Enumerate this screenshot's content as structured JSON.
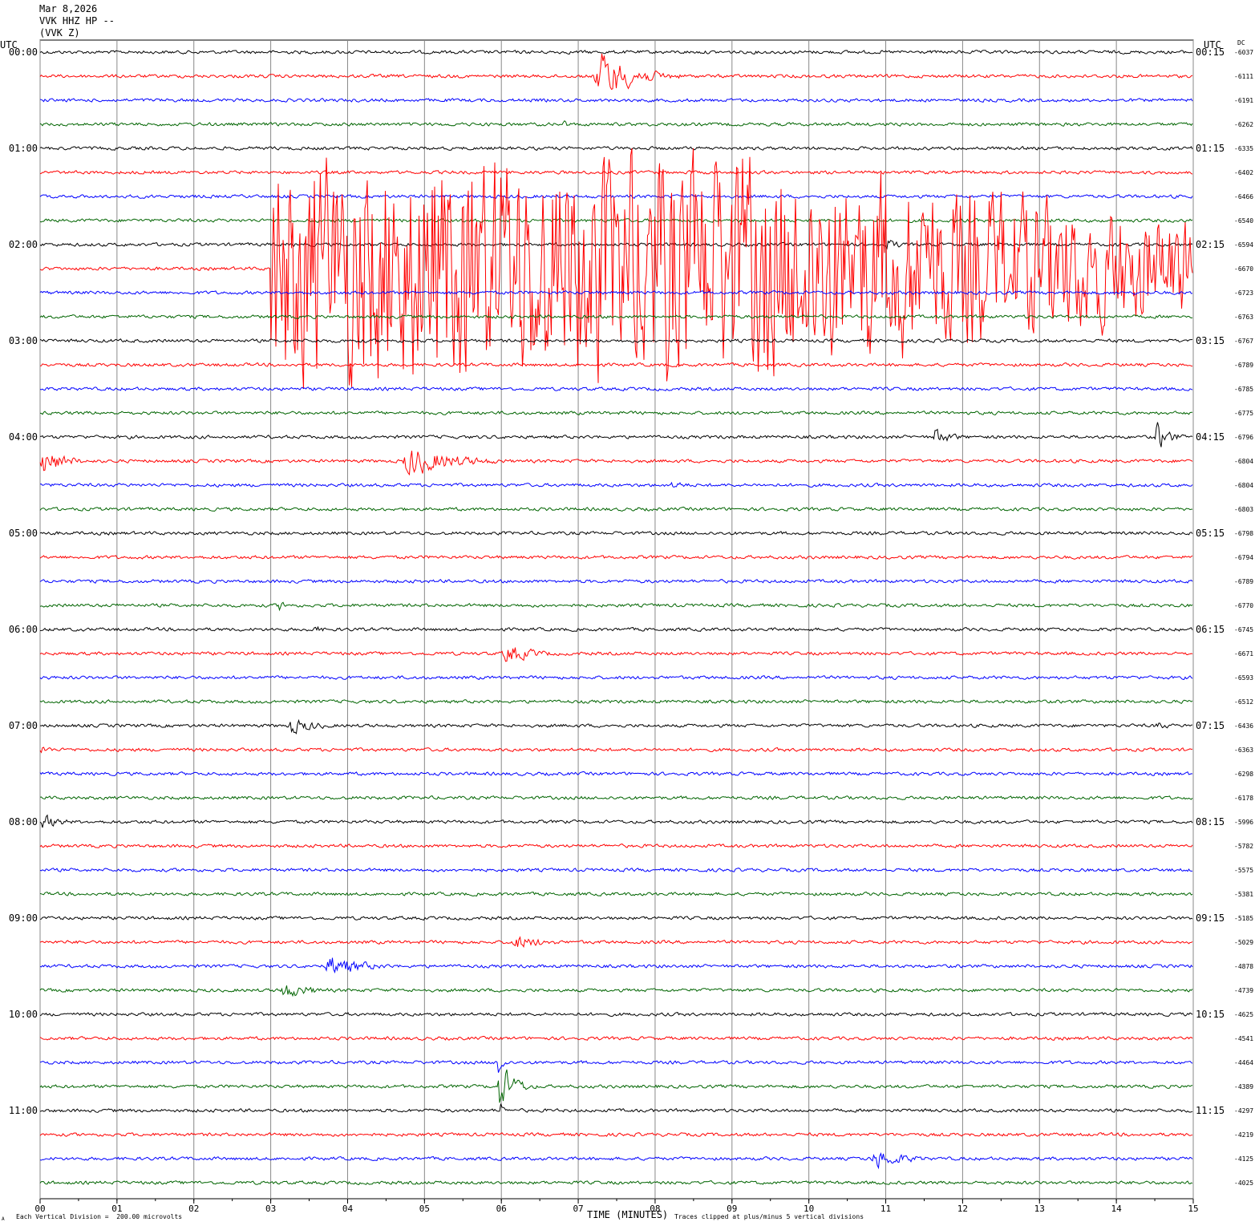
{
  "header": {
    "date": "Mar 8,2026",
    "station": "VVK HHZ HP --",
    "component": "(VVK Z)"
  },
  "left_axis_title": "UTC",
  "right_axis_title": "UTC",
  "dc_label": "DC",
  "footer": {
    "scale_note": "Each Vertical Division =  200.00 microvolts",
    "clip_note": "Traces clipped at plus/minus 5 vertical divisions",
    "corner_mark": "A"
  },
  "chart_data": {
    "type": "line",
    "title": "",
    "xlabel": "TIME (MINUTES)",
    "x_ticks": [
      "00",
      "01",
      "02",
      "03",
      "04",
      "05",
      "06",
      "07",
      "08",
      "09",
      "10",
      "11",
      "12",
      "13",
      "14",
      "15"
    ],
    "xlim": [
      0,
      15
    ],
    "grid": true,
    "trace_colors": [
      "#000000",
      "#ff0000",
      "#0000ff",
      "#006400"
    ],
    "left_hour_labels": [
      "00:00",
      "01:00",
      "02:00",
      "03:00",
      "04:00",
      "05:00",
      "06:00",
      "07:00",
      "08:00",
      "09:00",
      "10:00",
      "11:00"
    ],
    "right_hour_labels": [
      "00:15",
      "01:15",
      "02:15",
      "03:15",
      "04:15",
      "05:15",
      "06:15",
      "07:15",
      "08:15",
      "09:15",
      "10:15",
      "11:15"
    ],
    "dc_offsets": [
      "-6037",
      "-6111",
      "-6191",
      "-6262",
      "-6335",
      "-6402",
      "-6466",
      "-6540",
      "-6594",
      "-6670",
      "-6723",
      "-6763",
      "-6767",
      "-6789",
      "-6785",
      "-6775",
      "-6796",
      "-6804",
      "-6804",
      "-6803",
      "-6798",
      "-6794",
      "-6789",
      "-6770",
      "-6745",
      "-6671",
      "-6593",
      "-6512",
      "-6436",
      "-6363",
      "-6298",
      "-6178",
      "-5996",
      "-5782",
      "-5575",
      "-5381",
      "-5185",
      "-5029",
      "-4878",
      "-4739",
      "-4625",
      "-4541",
      "-4464",
      "-4389",
      "-4297",
      "-4219",
      "-4125",
      "-4025"
    ],
    "events": [
      {
        "row": 1,
        "start_min": 7.2,
        "end_min": 8.5,
        "amplitude": 1.0
      },
      {
        "row": 3,
        "start_min": 6.8,
        "end_min": 7.0,
        "amplitude": 0.2
      },
      {
        "row": 8,
        "start_min": 11.0,
        "end_min": 11.5,
        "amplitude": 0.25
      },
      {
        "row": 9,
        "start_min": 3.0,
        "end_min": 15.0,
        "amplitude": 1.0,
        "clipped": true
      },
      {
        "row": 16,
        "start_min": 11.6,
        "end_min": 12.3,
        "amplitude": 0.35
      },
      {
        "row": 16,
        "start_min": 14.5,
        "end_min": 15.0,
        "amplitude": 0.6
      },
      {
        "row": 17,
        "start_min": 0.0,
        "end_min": 0.8,
        "amplitude": 0.6
      },
      {
        "row": 17,
        "start_min": 4.7,
        "end_min": 6.5,
        "amplitude": 0.6
      },
      {
        "row": 18,
        "start_min": 8.2,
        "end_min": 8.8,
        "amplitude": 0.2
      },
      {
        "row": 23,
        "start_min": 3.1,
        "end_min": 3.4,
        "amplitude": 0.25
      },
      {
        "row": 24,
        "start_min": 3.5,
        "end_min": 4.0,
        "amplitude": 0.2
      },
      {
        "row": 25,
        "start_min": 6.0,
        "end_min": 7.0,
        "amplitude": 0.45
      },
      {
        "row": 28,
        "start_min": 3.2,
        "end_min": 4.2,
        "amplitude": 0.35
      },
      {
        "row": 28,
        "start_min": 14.5,
        "end_min": 15.0,
        "amplitude": 0.2
      },
      {
        "row": 29,
        "start_min": 0.0,
        "end_min": 0.4,
        "amplitude": 0.2
      },
      {
        "row": 32,
        "start_min": 0.0,
        "end_min": 0.8,
        "amplitude": 0.3
      },
      {
        "row": 37,
        "start_min": 6.1,
        "end_min": 7.3,
        "amplitude": 0.3
      },
      {
        "row": 38,
        "start_min": 3.7,
        "end_min": 5.0,
        "amplitude": 0.45
      },
      {
        "row": 39,
        "start_min": 3.1,
        "end_min": 4.2,
        "amplitude": 0.35
      },
      {
        "row": 42,
        "start_min": 5.95,
        "end_min": 6.1,
        "amplitude": 0.9
      },
      {
        "row": 43,
        "start_min": 5.95,
        "end_min": 6.5,
        "amplitude": 1.0
      },
      {
        "row": 44,
        "start_min": 5.98,
        "end_min": 6.05,
        "amplitude": 0.8
      },
      {
        "row": 46,
        "start_min": 10.8,
        "end_min": 12.0,
        "amplitude": 0.4
      }
    ]
  }
}
